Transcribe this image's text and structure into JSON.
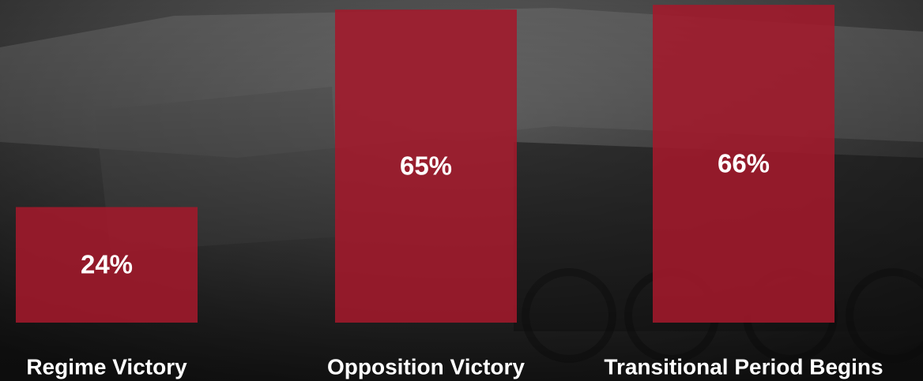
{
  "chart_data": {
    "type": "bar",
    "categories": [
      "Regime Victory",
      "Opposition Victory",
      "Transitional Period Begins"
    ],
    "values": [
      24,
      65,
      66
    ],
    "value_labels": [
      "24%",
      "65%",
      "66%"
    ],
    "color": "#a3192b",
    "ylim": [
      0,
      67
    ]
  }
}
